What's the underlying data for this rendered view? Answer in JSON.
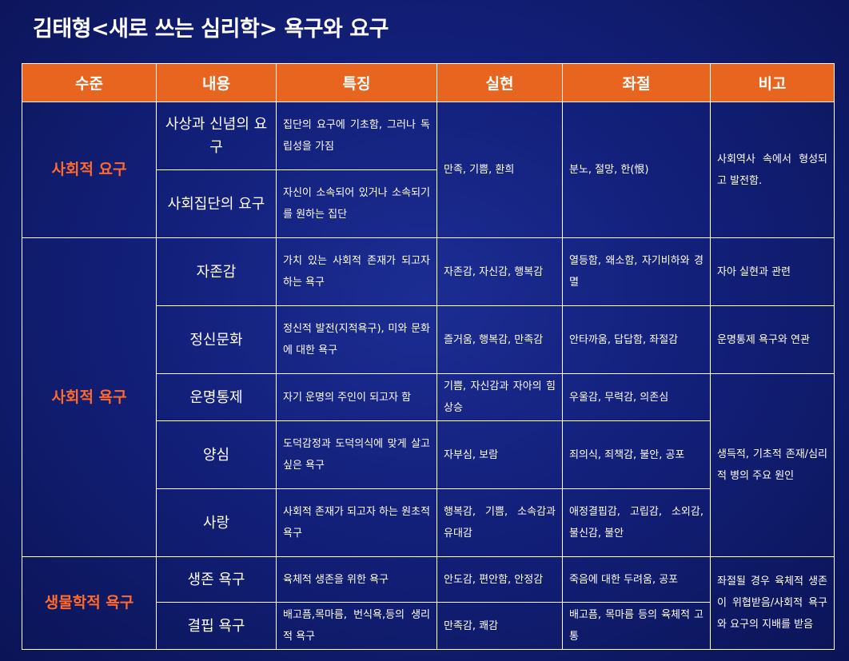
{
  "title": "김태형<새로 쓰는 심리학> 욕구와 요구",
  "headers": [
    "수준",
    "내용",
    "특징",
    "실현",
    "좌절",
    "비고"
  ],
  "levels": {
    "social_demand": "사회적 요구",
    "social_need": "사회적 욕구",
    "bio_need": "생물학적 욕구"
  },
  "rows": [
    {
      "content": "사상과 신념의 요구",
      "feature": "집단의 요구에 기초함, 그러나 독립성을 가짐"
    },
    {
      "content": "사회집단의 요구",
      "feature": "자신이 소속되어 있거나 소속되기를 원하는 집단"
    },
    {
      "content": "자존감",
      "feature": "가치 있는 사회적 존재가 되고자 하는 욕구",
      "realize": "자존감, 자신감, 행복감",
      "frustrate": "열등함, 왜소함, 자기비하와 경멸",
      "note": "자아 실현과 관련"
    },
    {
      "content": "정신문화",
      "feature": "정신적 발전(지적욕구), 미와 문화에 대한 욕구",
      "realize": "즐거움, 행복감, 만족감",
      "frustrate": "안타까움, 답답함, 좌절감",
      "note": "운명통제 욕구와 연관"
    },
    {
      "content": "운명통제",
      "feature": "자기 운명의 주인이 되고자 함",
      "realize": "기쁨, 자신감과 자아의 힘 상승",
      "frustrate": "우울감, 무력감, 의존심"
    },
    {
      "content": "양심",
      "feature": "도덕감정과 도덕의식에 맞게 살고 싶은 욕구",
      "realize": "자부심, 보람",
      "frustrate": "죄의식, 죄책감, 불안, 공포"
    },
    {
      "content": "사랑",
      "feature": "사회적 존재가 되고자 하는 원초적 욕구",
      "realize": "행복감, 기쁨, 소속감과 유대감",
      "frustrate": "애정결핍감, 고립감, 소외감, 불신감, 불안"
    },
    {
      "content": "생존 욕구",
      "feature": "육체적 생존을 위한 욕구",
      "realize": "안도감, 편안함, 안정감",
      "frustrate": "죽음에 대한 두려움, 공포"
    },
    {
      "content": "결핍 욕구",
      "feature": "배고픔,목마름, 번식욕,등의 생리적 욕구",
      "realize": "만족감, 쾌감",
      "frustrate": "배고픔, 목마름 등의 육체적 고통"
    }
  ],
  "merged": {
    "social_demand_realize": "만족, 기쁨, 환희",
    "social_demand_frustrate": "분노, 절망, 한(恨)",
    "social_demand_note": "사회역사 속에서 형성되고 발전함.",
    "social_need_note": "생득적, 기초적 존재/심리적 병의 주요 원인",
    "bio_note": "좌절될 경우 육체적 생존이 위협받음/사회적 욕구와 요구의 지배를 받음"
  },
  "colors": {
    "header_bg": "#e8651f",
    "level_text": "#ff6a2a",
    "background": "#13207a"
  }
}
